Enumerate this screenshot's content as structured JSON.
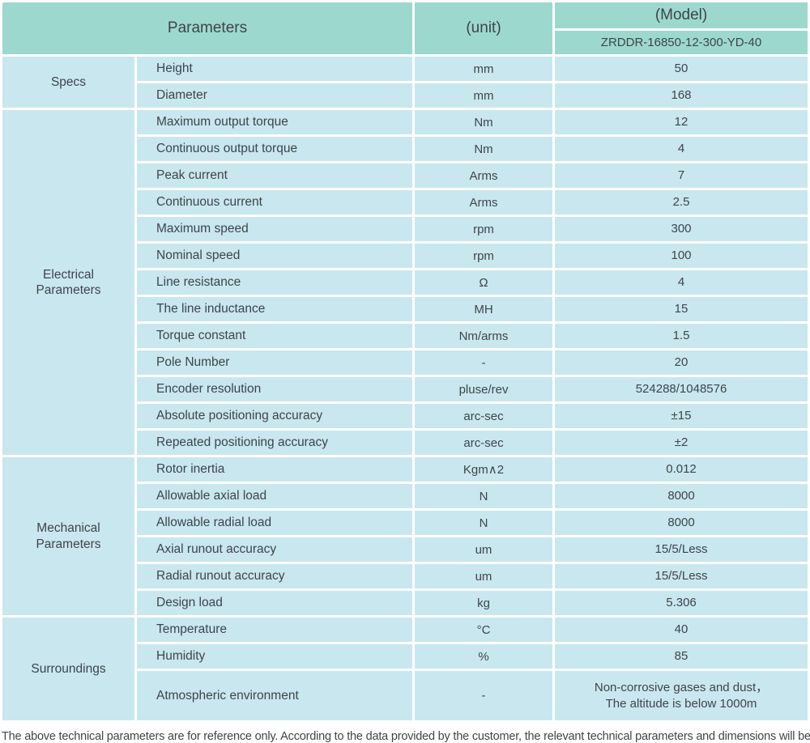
{
  "colors": {
    "header_bg": "#9dd8cf",
    "cell_bg": "#c9e7ee",
    "grid": "#ffffff",
    "text": "#3e4549"
  },
  "header": {
    "parameters_label": "Parameters",
    "unit_label": "(unit)",
    "model_label": "(Model)",
    "model_value": "ZRDDR-16850-12-300-YD-40"
  },
  "sections": [
    {
      "id": "specs",
      "name": "Specs",
      "rows": [
        {
          "param": "Height",
          "unit": "mm",
          "value": "50"
        },
        {
          "param": "Diameter",
          "unit": "mm",
          "value": "168"
        }
      ]
    },
    {
      "id": "electrical",
      "name": "Electrical\nParameters",
      "rows": [
        {
          "param": "Maximum output torque",
          "unit": "Nm",
          "value": "12"
        },
        {
          "param": "Continuous output torque",
          "unit": "Nm",
          "value": "4"
        },
        {
          "param": "Peak current",
          "unit": "Arms",
          "value": "7"
        },
        {
          "param": "Continuous current",
          "unit": "Arms",
          "value": "2.5"
        },
        {
          "param": "Maximum speed",
          "unit": "rpm",
          "value": "300"
        },
        {
          "param": "Nominal speed",
          "unit": "rpm",
          "value": "100"
        },
        {
          "param": "Line resistance",
          "unit": "Ω",
          "value": "4"
        },
        {
          "param": "The line inductance",
          "unit": "MH",
          "value": "15"
        },
        {
          "param": "Torque constant",
          "unit": "Nm/arms",
          "value": "1.5"
        },
        {
          "param": "Pole Number",
          "unit": "-",
          "value": "20"
        },
        {
          "param": "Encoder resolution",
          "unit": "pluse/rev",
          "value": "524288/1048576"
        },
        {
          "param": "Absolute positioning accuracy",
          "unit": "arc-sec",
          "value": "±15"
        },
        {
          "param": "Repeated positioning accuracy",
          "unit": "arc-sec",
          "value": "±2"
        }
      ]
    },
    {
      "id": "mechanical",
      "name": "Mechanical\nParameters",
      "rows": [
        {
          "param": "Rotor inertia",
          "unit": "Kgm∧2",
          "value": "0.012"
        },
        {
          "param": "Allowable axial load",
          "unit": "N",
          "value": "8000"
        },
        {
          "param": "Allowable radial load",
          "unit": "N",
          "value": "8000"
        },
        {
          "param": "Axial runout accuracy",
          "unit": "um",
          "value": "15/5/Less"
        },
        {
          "param": "Radial runout accuracy",
          "unit": "um",
          "value": "15/5/Less"
        },
        {
          "param": "Design load",
          "unit": "kg",
          "value": "5.306"
        }
      ]
    },
    {
      "id": "surroundings",
      "name": "Surroundings",
      "rows": [
        {
          "param": "Temperature",
          "unit": "°C",
          "value": "40"
        },
        {
          "param": "Humidity",
          "unit": "%",
          "value": "85"
        },
        {
          "param": "Atmospheric environment",
          "unit": "-",
          "value": "Non-corrosive gases and dust，\nThe altitude is below 1000m",
          "tall": true
        }
      ]
    }
  ],
  "footer": {
    "note": "The above technical parameters are for reference only. According to the data provided by the customer, the relevant technical parameters and dimensions will be issued."
  }
}
